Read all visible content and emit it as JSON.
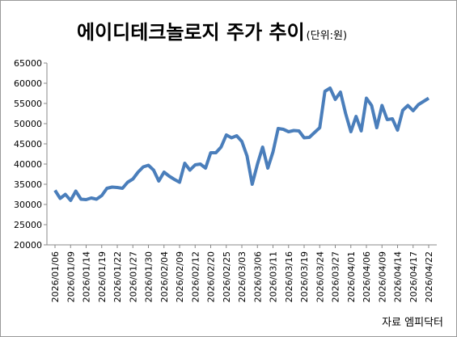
{
  "chart_data": {
    "type": "line",
    "title": "에이디테크놀로지 주가 추이",
    "unit_note": "(단위:원)",
    "source": "자료 엠피닥터",
    "categories": [
      "2026/01/06",
      null,
      null,
      "2026/01/09",
      null,
      null,
      "2026/01/14",
      null,
      null,
      "2026/01/19",
      null,
      null,
      "2026/01/22",
      null,
      null,
      "2026/01/27",
      null,
      null,
      "2026/01/30",
      null,
      null,
      "2026/02/04",
      null,
      null,
      "2026/02/09",
      null,
      null,
      "2026/02/12",
      null,
      null,
      "2026/02/20",
      null,
      null,
      "2026/02/25",
      null,
      null,
      "2026/03/03",
      null,
      null,
      "2026/03/06",
      null,
      null,
      "2026/03/11",
      null,
      null,
      "2026/03/16",
      null,
      null,
      "2026/03/19",
      null,
      null,
      "2026/03/24",
      null,
      null,
      "2026/03/27",
      null,
      null,
      "2026/04/01",
      null,
      null,
      "2026/04/06",
      null,
      null,
      "2026/04/09",
      null,
      null,
      "2026/04/14",
      null,
      null,
      "2026/04/17",
      null,
      null,
      "2026/04/22"
    ],
    "values": [
      33500,
      31500,
      32500,
      31000,
      33300,
      31300,
      31200,
      31600,
      31300,
      32200,
      34000,
      34300,
      34200,
      34000,
      35500,
      36300,
      38000,
      39300,
      39700,
      38500,
      35800,
      38000,
      37000,
      36200,
      35500,
      40200,
      38500,
      39800,
      40000,
      39000,
      42800,
      42800,
      44200,
      47200,
      46500,
      47000,
      45600,
      42000,
      35000,
      40000,
      44200,
      39000,
      43000,
      48800,
      48600,
      48000,
      48300,
      48200,
      46500,
      46600,
      47800,
      49000,
      58000,
      58800,
      56000,
      57800,
      52500,
      48000,
      51800,
      48200,
      56300,
      54500,
      49000,
      54500,
      51000,
      51200,
      48400,
      53300,
      54500,
      53200,
      54700,
      55500,
      56300
    ],
    "color": "#4a7ebb",
    "ylim": [
      20000,
      65000
    ],
    "yticks": [
      20000,
      25000,
      30000,
      35000,
      40000,
      45000,
      50000,
      55000,
      60000,
      65000
    ],
    "grid": false
  }
}
